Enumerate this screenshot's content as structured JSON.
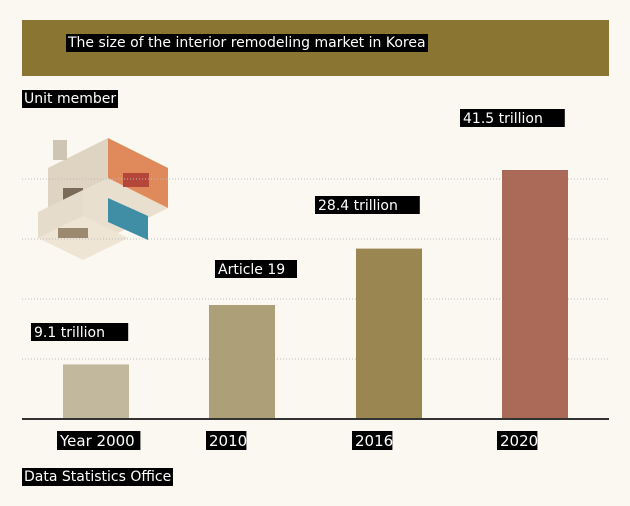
{
  "chart_data": {
    "type": "bar",
    "title": "The size of the interior remodeling market in Korea",
    "unit": "Unit member",
    "source": "Data Statistics Office",
    "categories": [
      "Year 2000",
      "2010",
      "2016",
      "2020"
    ],
    "value_labels": [
      "9.1 trillion",
      "Article 19",
      "28.4 trillion",
      "41.5 trillion"
    ],
    "values": [
      9.1,
      19,
      28.4,
      41.5
    ],
    "ylim": [
      0,
      50
    ],
    "grid": true,
    "colors": {
      "bars": [
        "#c2b89e",
        "#ada078",
        "#9a8651",
        "#aa6a57"
      ],
      "title_bar": "#8a7532",
      "grid": "#bbbbbb",
      "axis": "#333333"
    }
  }
}
